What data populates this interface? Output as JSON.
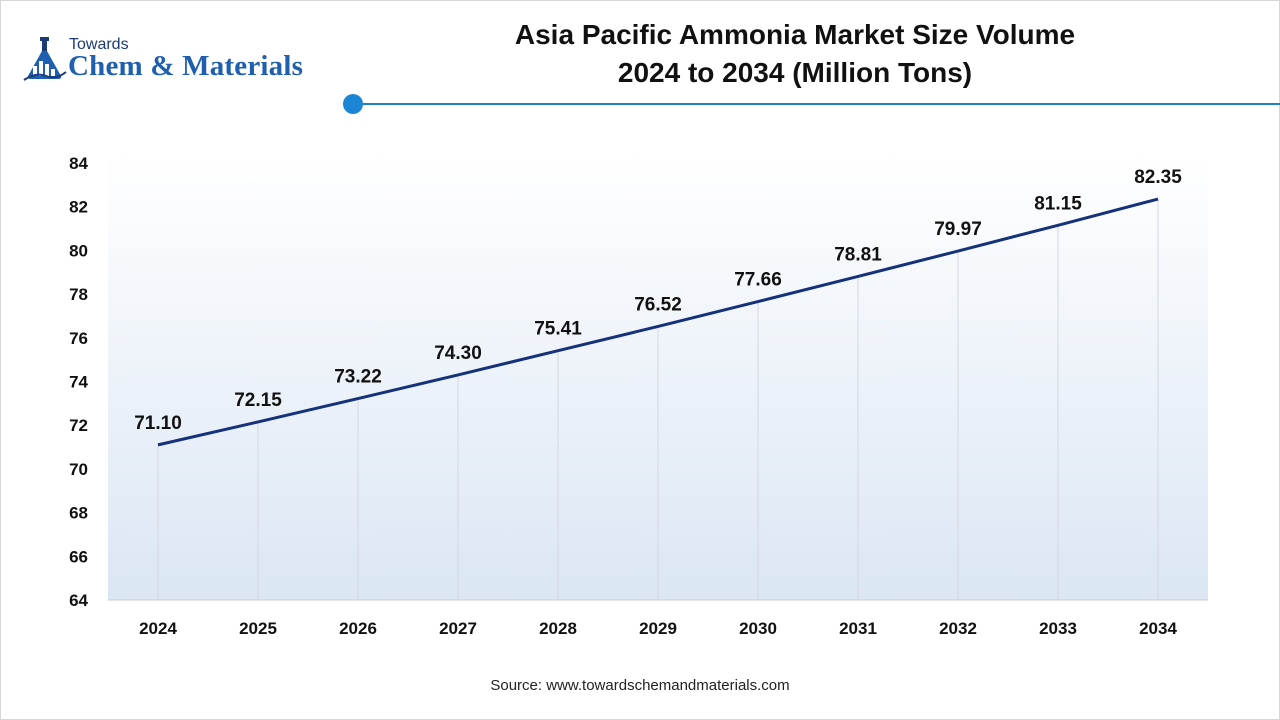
{
  "logo": {
    "top_text": "Towards",
    "main_text": "Chem & Materials"
  },
  "title_line1": "Asia Pacific Ammonia Market Size Volume",
  "title_line2": "2024 to 2034 (Million Tons)",
  "source": "Source: www.towardschemandmaterials.com",
  "colors": {
    "line": "#14317a",
    "accent": "#1b86d6",
    "gradient_top": "#ffffff",
    "gradient_bottom": "#dbe6f4"
  },
  "chart_data": {
    "type": "area",
    "categories": [
      "2024",
      "2025",
      "2026",
      "2027",
      "2028",
      "2029",
      "2030",
      "2031",
      "2032",
      "2033",
      "2034"
    ],
    "series": [
      {
        "values": [
          71.1,
          72.15,
          73.22,
          74.3,
          75.41,
          76.52,
          77.66,
          78.81,
          79.97,
          81.15,
          82.35
        ]
      }
    ],
    "data_labels": [
      "71.10",
      "72.15",
      "73.22",
      "74.30",
      "75.41",
      "76.52",
      "77.66",
      "78.81",
      "79.97",
      "81.15",
      "82.35"
    ],
    "ylim": [
      64,
      84
    ],
    "yticks": [
      64,
      66,
      68,
      70,
      72,
      74,
      76,
      78,
      80,
      82,
      84
    ],
    "grid": "vertical",
    "legend": "none"
  }
}
